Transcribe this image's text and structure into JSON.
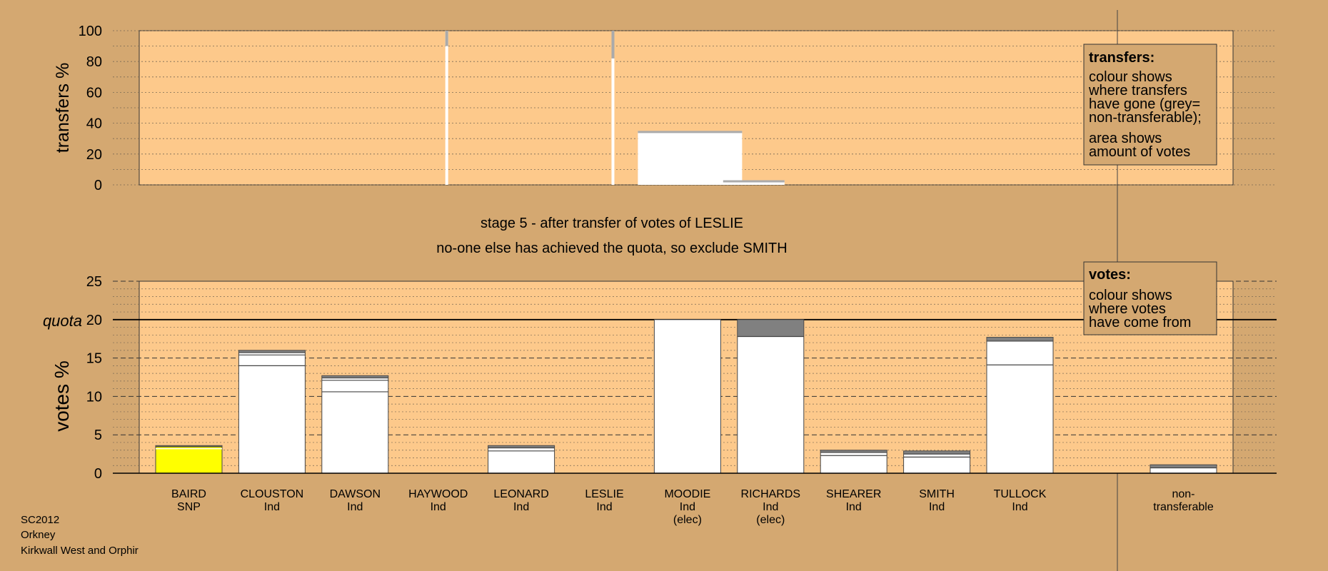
{
  "colors": {
    "background": "#d4a871",
    "plot_bg": "#fdc98b",
    "bar_white": "#ffffff",
    "bar_yellow": "#ffff00",
    "grey": "#aaaaaa",
    "dark_band": "#555555",
    "axis": "#000000"
  },
  "header": {
    "stage_text": "stage 5 - after transfer of votes of LESLIE",
    "status_text": "no-one else has achieved the quota, so exclude SMITH"
  },
  "footer": {
    "line1": "SC2012",
    "line2": "Orkney",
    "line3": "Kirkwall West and Orphir"
  },
  "legend_transfers": {
    "title": "transfers:",
    "line1": "colour shows",
    "line2": "where transfers",
    "line3": "have gone (grey=",
    "line4": "non-transferable);",
    "line5": "area shows",
    "line6": "amount of votes"
  },
  "legend_votes": {
    "title": "votes:",
    "line1": "colour shows",
    "line2": "where votes",
    "line3": "have come from"
  },
  "chart_data": [
    {
      "type": "bar",
      "name": "transfers",
      "ylabel": "transfers %",
      "ylim": [
        0,
        100
      ],
      "yticks": [
        0,
        20,
        40,
        60,
        80,
        100
      ],
      "grid": "dotted",
      "transfers": [
        {
          "to": "HAYWOOD",
          "kind": "exhausted-line",
          "value": 100,
          "grey_top": 10
        },
        {
          "to": "LESLIE",
          "kind": "exhausted-line",
          "value": 100,
          "grey_top": 18
        },
        {
          "to": "MOODIE",
          "kind": "bar",
          "value": 35
        },
        {
          "to": "RICHARDS",
          "kind": "bar",
          "value": 3
        }
      ]
    },
    {
      "type": "bar",
      "name": "votes",
      "ylabel": "votes %",
      "ylim": [
        0,
        25
      ],
      "yticks": [
        0,
        5,
        10,
        15,
        20,
        25
      ],
      "quota_label": "quota",
      "quota": 20,
      "grid": "dashed",
      "candidates": [
        {
          "name": "BAIRD",
          "party": "SNP",
          "note": "",
          "value": 3.6,
          "color": "#ffff00",
          "bands": [
            3.2,
            3.45
          ]
        },
        {
          "name": "CLOUSTON",
          "party": "Ind",
          "note": "",
          "value": 16.0,
          "color": "#ffffff",
          "bands": [
            14.0,
            15.4,
            15.7
          ]
        },
        {
          "name": "DAWSON",
          "party": "Ind",
          "note": "",
          "value": 12.7,
          "color": "#ffffff",
          "bands": [
            10.6,
            12.1,
            12.4
          ]
        },
        {
          "name": "HAYWOOD",
          "party": "Ind",
          "note": "",
          "value": 0,
          "color": "#ffffff",
          "bands": []
        },
        {
          "name": "LEONARD",
          "party": "Ind",
          "note": "",
          "value": 3.6,
          "color": "#ffffff",
          "bands": [
            2.9,
            3.3
          ]
        },
        {
          "name": "LESLIE",
          "party": "Ind",
          "note": "",
          "value": 0,
          "color": "#ffffff",
          "bands": []
        },
        {
          "name": "MOODIE",
          "party": "Ind",
          "note": "(elec)",
          "value": 20.0,
          "color": "#ffffff",
          "bands": []
        },
        {
          "name": "RICHARDS",
          "party": "Ind",
          "note": "(elec)",
          "value": 20.0,
          "color": "#ffffff",
          "bands": [
            17.8
          ]
        },
        {
          "name": "SHEARER",
          "party": "Ind",
          "note": "",
          "value": 3.0,
          "color": "#ffffff",
          "bands": [
            2.3,
            2.7
          ]
        },
        {
          "name": "SMITH",
          "party": "Ind",
          "note": "",
          "value": 2.9,
          "color": "#ffffff",
          "bands": [
            2.1,
            2.5
          ]
        },
        {
          "name": "TULLOCK",
          "party": "Ind",
          "note": "",
          "value": 17.7,
          "color": "#ffffff",
          "bands": [
            14.1,
            17.2
          ]
        }
      ],
      "nontransferable": {
        "label1": "non-",
        "label2": "transferable",
        "value": 1.1,
        "bands": [
          0.7
        ]
      }
    }
  ]
}
